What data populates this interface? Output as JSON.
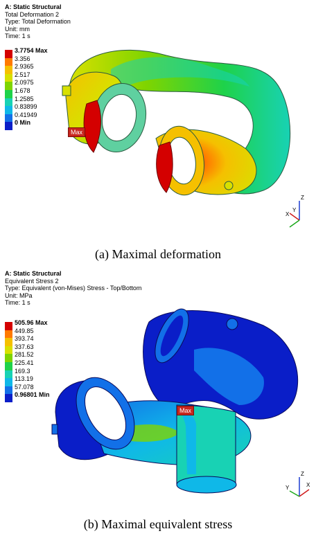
{
  "panel_a": {
    "header": {
      "title": "A: Static Structural",
      "line1": "Total Deformation 2",
      "line2": "Type: Total Deformation",
      "line3": "Unit: mm",
      "line4": "Time: 1 s"
    },
    "legend": [
      {
        "label": "3.7754 Max",
        "color": "#d40000"
      },
      {
        "label": "3.356",
        "color": "#ff7a00"
      },
      {
        "label": "2.9365",
        "color": "#f5c000"
      },
      {
        "label": "2.517",
        "color": "#d8e000"
      },
      {
        "label": "2.0975",
        "color": "#7fd400"
      },
      {
        "label": "1.678",
        "color": "#1ed24a"
      },
      {
        "label": "1.2585",
        "color": "#18d2b4"
      },
      {
        "label": "0.83899",
        "color": "#0fb8e8"
      },
      {
        "label": "0.41949",
        "color": "#1270e8"
      },
      {
        "label": "0 Min",
        "color": "#0a1ec8"
      }
    ],
    "max_tag": "Max",
    "caption": "(a) Maximal deformation"
  },
  "panel_b": {
    "header": {
      "title": "A: Static Structural",
      "line1": "Equivalent Stress 2",
      "line2": "Type: Equivalent (von-Mises) Stress - Top/Bottom",
      "line3": "Unit: MPa",
      "line4": "Time: 1 s"
    },
    "legend": [
      {
        "label": "505.96 Max",
        "color": "#d40000"
      },
      {
        "label": "449.85",
        "color": "#ff7a00"
      },
      {
        "label": "393.74",
        "color": "#f5c000"
      },
      {
        "label": "337.63",
        "color": "#d8e000"
      },
      {
        "label": "281.52",
        "color": "#7fd400"
      },
      {
        "label": "225.41",
        "color": "#1ed24a"
      },
      {
        "label": "169.3",
        "color": "#18d2b4"
      },
      {
        "label": "113.19",
        "color": "#0fb8e8"
      },
      {
        "label": "57.078",
        "color": "#1270e8"
      },
      {
        "label": "0.96801 Min",
        "color": "#0a1ec8"
      }
    ],
    "max_tag": "Max",
    "caption": "(b) Maximal equivalent stress"
  },
  "triad": {
    "z": "Z",
    "y": "Y",
    "x": "X"
  }
}
